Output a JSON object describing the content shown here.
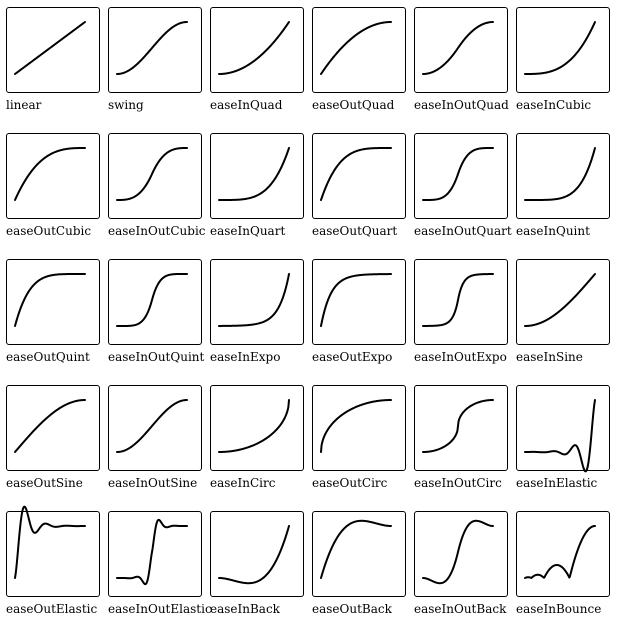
{
  "easings": [
    "linear",
    "swing",
    "easeInQuad",
    "easeOutQuad",
    "easeInOutQuad",
    "easeInCubic",
    "easeOutCubic",
    "easeInOutCubic",
    "easeInQuart",
    "easeOutQuart",
    "easeInOutQuart",
    "easeInQuint",
    "easeOutQuint",
    "easeInOutQuint",
    "easeInExpo",
    "easeOutExpo",
    "easeInOutExpo",
    "easeInSine",
    "easeOutSine",
    "easeInOutSine",
    "easeInCirc",
    "easeOutCirc",
    "easeInOutCirc",
    "easeInElastic",
    "easeOutElastic",
    "easeInOutElastic",
    "easeInBack",
    "easeOutBack",
    "easeInOutBack",
    "easeInBounce"
  ],
  "curve_color": "#000000"
}
